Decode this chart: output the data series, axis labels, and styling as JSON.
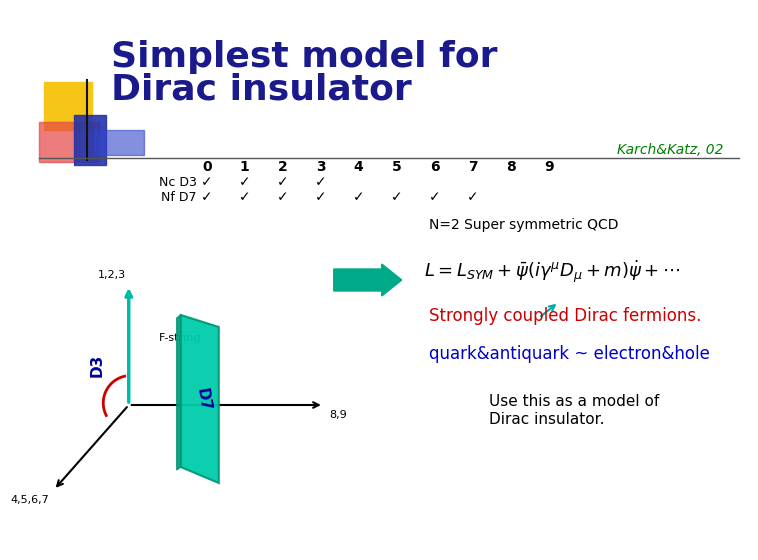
{
  "title_line1": "Simplest model for",
  "title_line2": "Dirac insulator",
  "title_color": "#1a1a8c",
  "title_fontsize": 26,
  "citation": "Karch&Katz, 02",
  "citation_color": "#008000",
  "citation_fontsize": 10,
  "numbers": [
    "0",
    "1",
    "2",
    "3",
    "4",
    "5",
    "6",
    "7",
    "8",
    "9"
  ],
  "nc_d3_label": "Nc D3",
  "nf_d7_label": "Nf D7",
  "nc_d3_checks": [
    0,
    1,
    2,
    3
  ],
  "nf_d7_checks": [
    0,
    1,
    2,
    3,
    4,
    5,
    6,
    7
  ],
  "label_123": "1,2,3",
  "label_89": "8,9",
  "label_4567": "4,5,6,7",
  "label_d3": "D3",
  "label_d3_color": "#000099",
  "label_d7": "D7",
  "label_d7_color": "#000099",
  "label_fstring": "F-string",
  "d7_face_color": "#00ccaa",
  "d7_edge_color": "#009977",
  "arc_color": "#cc0000",
  "teal_axis_color": "#00bbaa",
  "black_axis_color": "#000000",
  "n2_text": "N=2 Super symmetric QCD",
  "n2_fontsize": 10,
  "n2_color": "#000000",
  "lagrangian_fontsize": 13,
  "lagrangian_color": "#000000",
  "strongly_text": "Strongly coupled Dirac fermions.",
  "strongly_color": "#cc0000",
  "strongly_fontsize": 12,
  "quark_text": "quark&antiquark ~ electron&hole",
  "quark_color": "#0000cc",
  "quark_fontsize": 12,
  "use_text1": "Use this as a model of",
  "use_text2": "Dirac insulator.",
  "use_color": "#000000",
  "use_fontsize": 11,
  "bg_color": "#ffffff",
  "arrow_big_color": "#00aa88",
  "arrow_pointer_color": "#00aaaa"
}
